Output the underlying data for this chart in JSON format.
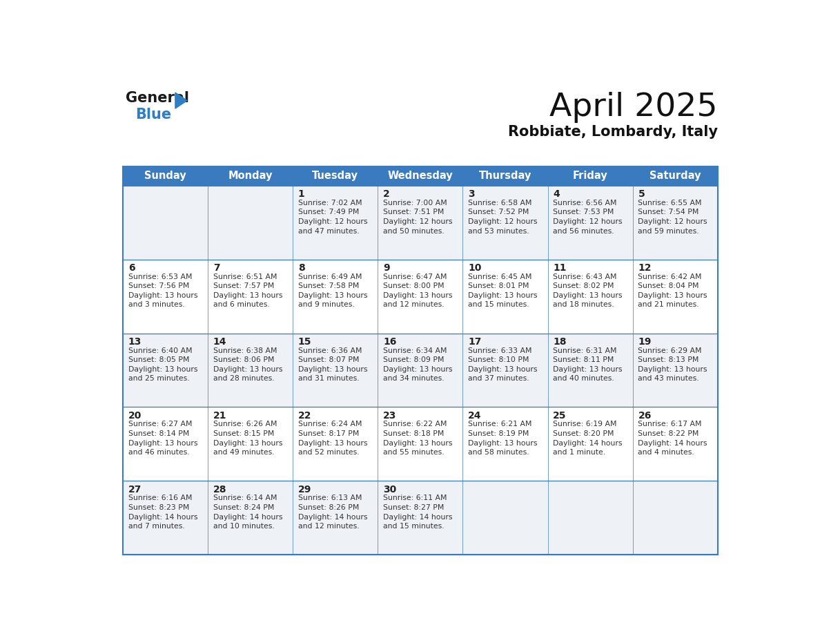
{
  "title": "April 2025",
  "subtitle": "Robbiate, Lombardy, Italy",
  "days_of_week": [
    "Sunday",
    "Monday",
    "Tuesday",
    "Wednesday",
    "Thursday",
    "Friday",
    "Saturday"
  ],
  "header_bg": "#3a7abf",
  "header_text": "#ffffff",
  "row_bg_light": "#eef2f7",
  "row_bg_white": "#ffffff",
  "border_color": "#3a7abf",
  "row_divider_color": "#3a7abf",
  "day_num_color": "#222222",
  "cell_text_color": "#333333",
  "title_color": "#111111",
  "subtitle_color": "#111111",
  "weeks": [
    {
      "days": [
        {
          "date": "",
          "info": ""
        },
        {
          "date": "",
          "info": ""
        },
        {
          "date": "1",
          "info": "Sunrise: 7:02 AM\nSunset: 7:49 PM\nDaylight: 12 hours\nand 47 minutes."
        },
        {
          "date": "2",
          "info": "Sunrise: 7:00 AM\nSunset: 7:51 PM\nDaylight: 12 hours\nand 50 minutes."
        },
        {
          "date": "3",
          "info": "Sunrise: 6:58 AM\nSunset: 7:52 PM\nDaylight: 12 hours\nand 53 minutes."
        },
        {
          "date": "4",
          "info": "Sunrise: 6:56 AM\nSunset: 7:53 PM\nDaylight: 12 hours\nand 56 minutes."
        },
        {
          "date": "5",
          "info": "Sunrise: 6:55 AM\nSunset: 7:54 PM\nDaylight: 12 hours\nand 59 minutes."
        }
      ]
    },
    {
      "days": [
        {
          "date": "6",
          "info": "Sunrise: 6:53 AM\nSunset: 7:56 PM\nDaylight: 13 hours\nand 3 minutes."
        },
        {
          "date": "7",
          "info": "Sunrise: 6:51 AM\nSunset: 7:57 PM\nDaylight: 13 hours\nand 6 minutes."
        },
        {
          "date": "8",
          "info": "Sunrise: 6:49 AM\nSunset: 7:58 PM\nDaylight: 13 hours\nand 9 minutes."
        },
        {
          "date": "9",
          "info": "Sunrise: 6:47 AM\nSunset: 8:00 PM\nDaylight: 13 hours\nand 12 minutes."
        },
        {
          "date": "10",
          "info": "Sunrise: 6:45 AM\nSunset: 8:01 PM\nDaylight: 13 hours\nand 15 minutes."
        },
        {
          "date": "11",
          "info": "Sunrise: 6:43 AM\nSunset: 8:02 PM\nDaylight: 13 hours\nand 18 minutes."
        },
        {
          "date": "12",
          "info": "Sunrise: 6:42 AM\nSunset: 8:04 PM\nDaylight: 13 hours\nand 21 minutes."
        }
      ]
    },
    {
      "days": [
        {
          "date": "13",
          "info": "Sunrise: 6:40 AM\nSunset: 8:05 PM\nDaylight: 13 hours\nand 25 minutes."
        },
        {
          "date": "14",
          "info": "Sunrise: 6:38 AM\nSunset: 8:06 PM\nDaylight: 13 hours\nand 28 minutes."
        },
        {
          "date": "15",
          "info": "Sunrise: 6:36 AM\nSunset: 8:07 PM\nDaylight: 13 hours\nand 31 minutes."
        },
        {
          "date": "16",
          "info": "Sunrise: 6:34 AM\nSunset: 8:09 PM\nDaylight: 13 hours\nand 34 minutes."
        },
        {
          "date": "17",
          "info": "Sunrise: 6:33 AM\nSunset: 8:10 PM\nDaylight: 13 hours\nand 37 minutes."
        },
        {
          "date": "18",
          "info": "Sunrise: 6:31 AM\nSunset: 8:11 PM\nDaylight: 13 hours\nand 40 minutes."
        },
        {
          "date": "19",
          "info": "Sunrise: 6:29 AM\nSunset: 8:13 PM\nDaylight: 13 hours\nand 43 minutes."
        }
      ]
    },
    {
      "days": [
        {
          "date": "20",
          "info": "Sunrise: 6:27 AM\nSunset: 8:14 PM\nDaylight: 13 hours\nand 46 minutes."
        },
        {
          "date": "21",
          "info": "Sunrise: 6:26 AM\nSunset: 8:15 PM\nDaylight: 13 hours\nand 49 minutes."
        },
        {
          "date": "22",
          "info": "Sunrise: 6:24 AM\nSunset: 8:17 PM\nDaylight: 13 hours\nand 52 minutes."
        },
        {
          "date": "23",
          "info": "Sunrise: 6:22 AM\nSunset: 8:18 PM\nDaylight: 13 hours\nand 55 minutes."
        },
        {
          "date": "24",
          "info": "Sunrise: 6:21 AM\nSunset: 8:19 PM\nDaylight: 13 hours\nand 58 minutes."
        },
        {
          "date": "25",
          "info": "Sunrise: 6:19 AM\nSunset: 8:20 PM\nDaylight: 14 hours\nand 1 minute."
        },
        {
          "date": "26",
          "info": "Sunrise: 6:17 AM\nSunset: 8:22 PM\nDaylight: 14 hours\nand 4 minutes."
        }
      ]
    },
    {
      "days": [
        {
          "date": "27",
          "info": "Sunrise: 6:16 AM\nSunset: 8:23 PM\nDaylight: 14 hours\nand 7 minutes."
        },
        {
          "date": "28",
          "info": "Sunrise: 6:14 AM\nSunset: 8:24 PM\nDaylight: 14 hours\nand 10 minutes."
        },
        {
          "date": "29",
          "info": "Sunrise: 6:13 AM\nSunset: 8:26 PM\nDaylight: 14 hours\nand 12 minutes."
        },
        {
          "date": "30",
          "info": "Sunrise: 6:11 AM\nSunset: 8:27 PM\nDaylight: 14 hours\nand 15 minutes."
        },
        {
          "date": "",
          "info": ""
        },
        {
          "date": "",
          "info": ""
        },
        {
          "date": "",
          "info": ""
        }
      ]
    }
  ],
  "logo_general_color": "#1a1a1a",
  "logo_blue_color": "#2e7fc1",
  "logo_triangle_color": "#2e7fc1"
}
